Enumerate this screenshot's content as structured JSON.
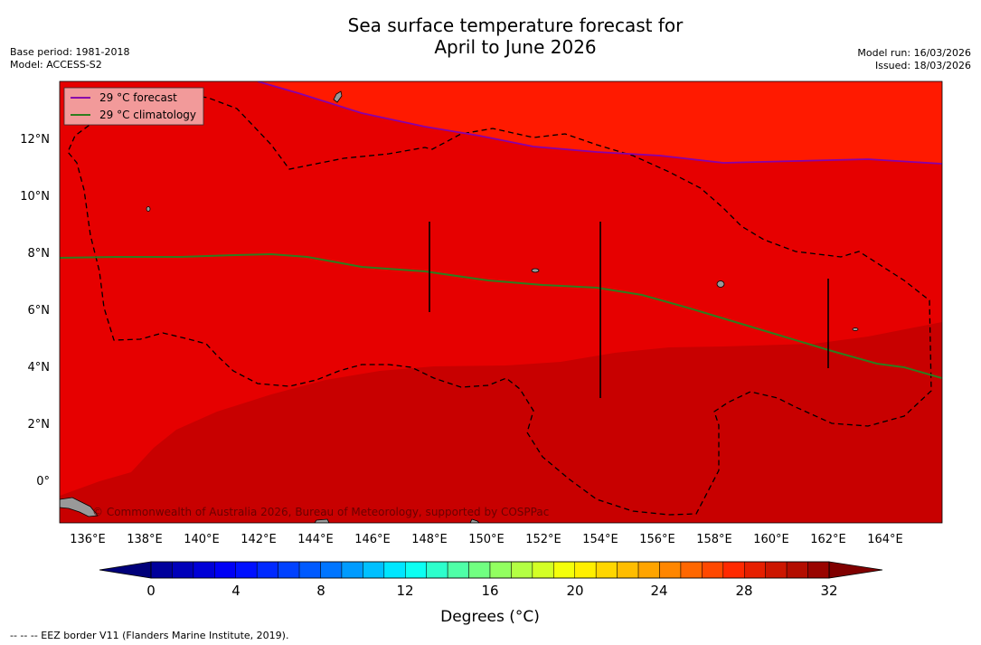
{
  "header": {
    "title_line1": "Sea surface temperature forecast for",
    "title_line2": "April to June 2026",
    "base_period": "Base period: 1981-2018",
    "model": "Model: ACCESS-S2",
    "model_run": "Model run: 16/03/2026",
    "issued": "Issued: 18/03/2026"
  },
  "map": {
    "latitude_labels": [
      "12°N",
      "10°N",
      "8°N",
      "6°N",
      "4°N",
      "2°N",
      "0°"
    ],
    "longitude_labels": [
      "136°E",
      "138°E",
      "140°E",
      "142°E",
      "144°E",
      "146°E",
      "148°E",
      "150°E",
      "152°E",
      "154°E",
      "156°E",
      "158°E",
      "160°E",
      "162°E",
      "164°E"
    ],
    "legend": [
      {
        "label": "29 °C  forecast",
        "color": "#8800aa"
      },
      {
        "label": "29 °C  climatology",
        "color": "#2e7d1e"
      }
    ],
    "copyright": "© Commonwealth of Australia 2026, Bureau of Meteorology, supported by COSPPac"
  },
  "colorbar": {
    "tick_labels": [
      "0",
      "4",
      "8",
      "12",
      "16",
      "20",
      "24",
      "28",
      "32"
    ],
    "label": "Degrees (°C)"
  },
  "footnote": "-- -- -- EEZ border V11 (Flanders Marine Institute, 2019).",
  "colors": {
    "sst_29_30": "#ff1a00",
    "sst_30_31": "#e60000",
    "sst_31_32": "#c80000",
    "forecast_line": "#8800aa",
    "climatology_line": "#2e7d1e"
  }
}
